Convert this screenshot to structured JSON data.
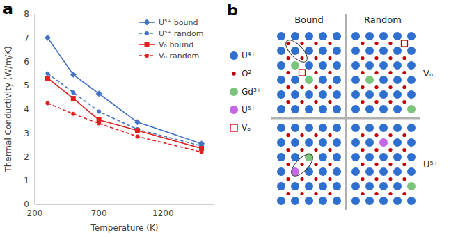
{
  "panel_labels": [
    "a",
    "b"
  ],
  "chart_data": {
    "type": "line",
    "x_label": "Temperature (K)",
    "y_label": "Thermal Conductivity (W/m/K)",
    "x": [
      300,
      500,
      700,
      1000,
      1500
    ],
    "xlim": [
      200,
      1600
    ],
    "xticks": [
      200,
      700,
      1200
    ],
    "ylim": [
      0,
      8
    ],
    "yticks": [
      0,
      1,
      2,
      3,
      4,
      5,
      6,
      7,
      8
    ],
    "grid": false,
    "legend": "top right",
    "series": [
      {
        "name": "U⁵⁺ bound",
        "color": "#4472c4",
        "marker": "diamond",
        "line_style": "solid",
        "values": [
          7.0,
          5.45,
          4.65,
          3.45,
          2.55
        ]
      },
      {
        "name": "U⁵⁺ random",
        "color": "#4472c4",
        "marker": "circle",
        "line_style": "dashed",
        "values": [
          5.5,
          4.7,
          3.9,
          3.15,
          2.45
        ]
      },
      {
        "name": "Vₒ bound",
        "color": "#e02020",
        "marker": "square",
        "line_style": "solid",
        "values": [
          5.3,
          4.45,
          3.55,
          3.1,
          2.35
        ]
      },
      {
        "name": "Vₒ random",
        "color": "#e02020",
        "marker": "circle",
        "line_style": "dashed",
        "values": [
          4.25,
          3.8,
          3.4,
          2.85,
          2.2
        ]
      }
    ]
  },
  "diagram": {
    "columns": [
      "Bound",
      "Random"
    ],
    "rows": [
      "Vₒ",
      "U⁵⁺"
    ],
    "legend": [
      {
        "label": "U⁴⁺",
        "color": "#2e6fd0",
        "marker": "circle"
      },
      {
        "label": "O²⁻",
        "color": "#c00000",
        "marker": "dot"
      },
      {
        "label": "Gd³⁺",
        "color": "#7cc47c",
        "marker": "circle"
      },
      {
        "label": "U⁵⁺",
        "color": "#c566e8",
        "marker": "circle"
      },
      {
        "label": "Vₒ",
        "color": "#c00000",
        "marker": "open_square"
      }
    ]
  }
}
